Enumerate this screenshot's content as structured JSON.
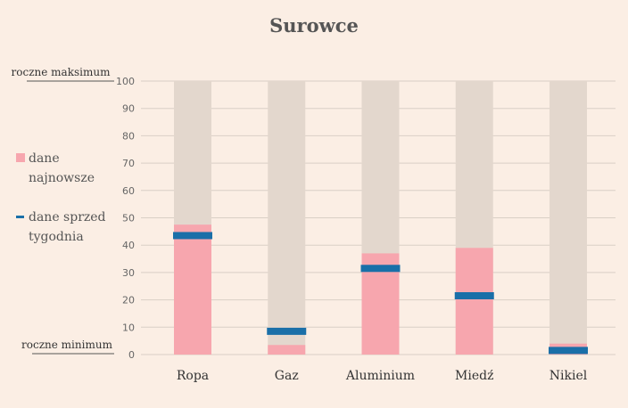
{
  "chart_data": {
    "type": "bar",
    "title": "Surowce",
    "categories": [
      "Ropa",
      "Gaz",
      "Aluminium",
      "Miedź",
      "Nikiel"
    ],
    "ylim": [
      0,
      100
    ],
    "yticks": [
      0,
      10,
      20,
      30,
      40,
      50,
      60,
      70,
      80,
      90,
      100
    ],
    "grid": true,
    "background_range": 100,
    "series": [
      {
        "name": "dane najnowsze",
        "type": "bar",
        "values": [
          47.5,
          3.5,
          37,
          39,
          4
        ]
      },
      {
        "name": "dane sprzed tygodnia",
        "type": "marker",
        "values": [
          43.5,
          8.5,
          31.5,
          21.5,
          1.5
        ]
      }
    ],
    "annotations": {
      "max_label": "roczne maksimum",
      "min_label": "roczne minimum"
    },
    "legend": [
      {
        "label_line1": "dane",
        "label_line2": "najnowsze",
        "symbol": "square"
      },
      {
        "label_line1": "dane sprzed",
        "label_line2": "tygodnia",
        "symbol": "dash"
      }
    ],
    "legend_position": "left",
    "colors": {
      "background": "#fbeee4",
      "range_bar": "#e3d7cd",
      "current_bar": "#f7a6ae",
      "week_marker": "#1a6fa8",
      "grid": "#dacfc6"
    }
  }
}
